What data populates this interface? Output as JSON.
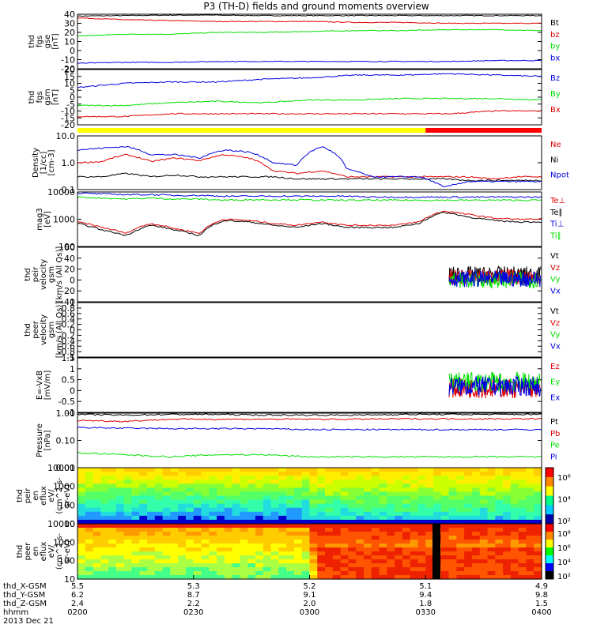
{
  "title": "P3 (TH-D) fields and ground moments overview",
  "colors": {
    "black": "#000000",
    "red": "#e00000",
    "green": "#00e000",
    "blue": "#0000e0",
    "yellow": "#ffff00",
    "barRed": "#ff0000"
  },
  "chart_data": [
    {
      "id": "fgs_gse",
      "type": "line",
      "ylabel": [
        "thd",
        "fgs",
        "gse",
        "[nT]"
      ],
      "ylim": [
        -20,
        40
      ],
      "yticks": [
        40,
        30,
        20,
        10,
        0,
        -10,
        -20
      ],
      "log": false,
      "series": [
        {
          "name": "Bt",
          "color": "black",
          "y": [
            38,
            38.5,
            39,
            39,
            38.5,
            38.5,
            38.5,
            38.5,
            38.5,
            38.5,
            38.5
          ]
        },
        {
          "name": "bz",
          "color": "red",
          "y": [
            36,
            34,
            33,
            32,
            32,
            32,
            31,
            31,
            30,
            30,
            30
          ]
        },
        {
          "name": "by",
          "color": "green",
          "y": [
            16,
            18,
            18,
            20,
            20,
            21,
            22,
            22,
            23,
            23,
            22
          ]
        },
        {
          "name": "bx",
          "color": "blue",
          "y": [
            -14,
            -13,
            -13,
            -12,
            -12,
            -12,
            -12,
            -12,
            -12,
            -11,
            -11
          ]
        }
      ]
    },
    {
      "id": "fgs_gsm",
      "type": "line",
      "ylabel": [
        "thd",
        "fgs",
        "gsm",
        "[nT]"
      ],
      "ylim": [
        -20,
        20
      ],
      "yticks": [
        20,
        15,
        10,
        5,
        0,
        -5,
        -10,
        -15,
        -20
      ],
      "log": false,
      "series": [
        {
          "name": "Bz",
          "color": "blue",
          "y": [
            7,
            10,
            11,
            11,
            13,
            14,
            16,
            16,
            17,
            16,
            15
          ]
        },
        {
          "name": "By",
          "color": "green",
          "y": [
            -6,
            -6,
            -4,
            -3,
            -4,
            -2,
            -2,
            -1,
            -1,
            -1,
            -2
          ]
        },
        {
          "name": "Bx",
          "color": "red",
          "y": [
            -14,
            -14,
            -12,
            -12,
            -12,
            -12,
            -12,
            -12,
            -12,
            -10,
            -10
          ]
        }
      ]
    },
    {
      "id": "density",
      "type": "line",
      "ylabel": [
        "Density",
        "[1/cc]",
        "[cm-3]"
      ],
      "ylim": [
        0.1,
        10
      ],
      "yticks": [
        10,
        1,
        0.1
      ],
      "ytick_labels": [
        "10.0",
        "1.0",
        "0.1"
      ],
      "log": true,
      "series": [
        {
          "name": "Ne",
          "color": "red",
          "y": [
            1.0,
            1.1,
            2,
            1.1,
            1.5,
            1.2,
            2,
            1.5,
            0.5,
            0.4,
            0.5,
            0.3,
            0.3,
            0.3,
            0.3,
            0.3,
            0.3,
            0.25,
            0.3,
            0.3
          ]
        },
        {
          "name": "Ni",
          "color": "black",
          "y": [
            0.3,
            0.3,
            0.4,
            0.3,
            0.35,
            0.3,
            0.3,
            0.3,
            0.3,
            0.25,
            0.25,
            0.25,
            0.25,
            0.25,
            0.25,
            0.25,
            0.22,
            0.22,
            0.22,
            0.22
          ]
        },
        {
          "name": "Npot",
          "color": "blue",
          "y": [
            3,
            3.5,
            4,
            2,
            2,
            1.5,
            3,
            2.5,
            1,
            0.8,
            4,
            0.6,
            0.3,
            0.3,
            0.3,
            0.12,
            0.2,
            0.2,
            0.2,
            0.2
          ]
        }
      ]
    },
    {
      "id": "temp",
      "type": "line",
      "ylabel": [
        "mag3",
        "[eV]"
      ],
      "ylim": [
        100,
        10000
      ],
      "yticks": [
        10000,
        1000,
        100
      ],
      "ytick_labels": [
        "10000",
        "1000",
        "100"
      ],
      "log": true,
      "series": [
        {
          "name": "Te⊥",
          "color": "red",
          "y": [
            800,
            500,
            300,
            700,
            450,
            300,
            1000,
            900,
            700,
            600,
            800,
            600,
            600,
            600,
            800,
            2000,
            1500,
            1100,
            1000,
            1000
          ]
        },
        {
          "name": "Te∥",
          "color": "black",
          "y": [
            700,
            400,
            250,
            600,
            400,
            250,
            900,
            800,
            600,
            500,
            700,
            500,
            500,
            500,
            700,
            1800,
            1200,
            900,
            800,
            800
          ]
        },
        {
          "name": "Ti⊥",
          "color": "blue",
          "y": [
            9000,
            8500,
            8000,
            8000,
            7500,
            7500,
            7000,
            7000,
            7000,
            7000,
            7000,
            7000,
            6500,
            6500,
            6500,
            6500,
            6500,
            6500,
            6500,
            6500
          ]
        },
        {
          "name": "Ti∥",
          "color": "green",
          "y": [
            6500,
            6000,
            5500,
            6000,
            5500,
            5500,
            5000,
            5200,
            5200,
            5200,
            5000,
            5000,
            5000,
            5000,
            5000,
            5000,
            5000,
            5000,
            5000,
            5000
          ]
        }
      ]
    },
    {
      "id": "peir_vel",
      "type": "line",
      "ylabel": [
        "thd",
        "peir",
        "velocity",
        "gsm",
        "[km/s (All Qs)]"
      ],
      "ylim": [
        -40,
        60
      ],
      "yticks": [
        60,
        40,
        20,
        0,
        -20,
        -40
      ],
      "log": false,
      "series": [
        {
          "name": "Vt",
          "color": "black",
          "y": [
            10
          ]
        },
        {
          "name": "Vz",
          "color": "red",
          "y": [
            5
          ]
        },
        {
          "name": "Vy",
          "color": "green",
          "y": [
            0
          ]
        },
        {
          "name": "Vx",
          "color": "blue",
          "y": [
            2
          ]
        }
      ]
    },
    {
      "id": "peer_vel",
      "type": "line",
      "ylabel": [
        "thd",
        "peer",
        "velocity",
        "gsm",
        "[km/s (All Qs)]"
      ],
      "ylim": [
        -1,
        1
      ],
      "yticks": [
        1.0,
        0.8,
        0.6,
        0.4,
        0.2,
        0.0,
        -0.2,
        -0.4,
        -0.6,
        -0.8,
        -1.0
      ],
      "log": false,
      "series": [
        {
          "name": "Vt",
          "color": "black",
          "y": []
        },
        {
          "name": "Vz",
          "color": "red",
          "y": []
        },
        {
          "name": "Vy",
          "color": "green",
          "y": []
        },
        {
          "name": "Vx",
          "color": "blue",
          "y": []
        }
      ]
    },
    {
      "id": "efield",
      "type": "line",
      "ylabel": [
        "E=-VxB",
        "[mV/m]"
      ],
      "ylim": [
        -1,
        1.5
      ],
      "yticks": [
        1.5,
        1.0,
        0.5,
        0.0,
        -0.5,
        -1.0
      ],
      "log": false,
      "series": [
        {
          "name": "Ez",
          "color": "red",
          "y": [
            0.1
          ]
        },
        {
          "name": "Ey",
          "color": "green",
          "y": [
            0.4
          ]
        },
        {
          "name": "Ex",
          "color": "blue",
          "y": [
            0.2
          ]
        }
      ]
    },
    {
      "id": "pressure",
      "type": "line",
      "ylabel": [
        "Pressure",
        "[nPa]"
      ],
      "ylim": [
        0.01,
        1
      ],
      "yticks": [
        1,
        0.1,
        0.01
      ],
      "ytick_labels": [
        "1.00",
        "0.10",
        "0.01"
      ],
      "log": true,
      "series": [
        {
          "name": "Pt",
          "color": "black",
          "y": [
            0.9,
            0.85,
            0.9,
            0.9,
            0.85,
            0.85,
            0.85,
            0.9,
            0.9,
            0.9,
            0.9
          ]
        },
        {
          "name": "Pb",
          "color": "red",
          "y": [
            0.55,
            0.5,
            0.6,
            0.6,
            0.6,
            0.6,
            0.6,
            0.62,
            0.62,
            0.62,
            0.62
          ]
        },
        {
          "name": "Pe",
          "color": "green",
          "y": [
            0.035,
            0.03,
            0.025,
            0.03,
            0.03,
            0.025,
            0.025,
            0.025,
            0.025,
            0.025,
            0.025
          ]
        },
        {
          "name": "Pi",
          "color": "blue",
          "y": [
            0.3,
            0.28,
            0.27,
            0.27,
            0.27,
            0.25,
            0.25,
            0.25,
            0.25,
            0.25,
            0.25
          ]
        }
      ]
    },
    {
      "id": "peir_spec",
      "type": "heatmap",
      "ylabel": [
        "thd",
        "peir",
        "en",
        "eflux",
        "eV/",
        "(cm^2-s-",
        "sr-eV)"
      ],
      "ylim": [
        10,
        10000
      ],
      "yticks": [
        10000,
        1000,
        100,
        10
      ],
      "ytick_labels": [
        "10000",
        "1000",
        "100",
        "10"
      ],
      "log": true,
      "colorbar_labels": [
        "10⁶",
        "10⁴",
        "10²"
      ]
    },
    {
      "id": "peer_spec",
      "type": "heatmap",
      "ylabel": [
        "thd",
        "peer",
        "en",
        "eflux",
        "eV/",
        "(cm^2-s-",
        "sr-eV)"
      ],
      "ylim": [
        10,
        10000
      ],
      "yticks": [
        10000,
        1000,
        100,
        10
      ],
      "ytick_labels": [
        "10000",
        "1000",
        "100",
        "10"
      ],
      "log": true,
      "colorbar_labels": [
        "10⁸",
        "10⁶",
        "10⁴",
        "10²"
      ]
    }
  ],
  "state_bar": {
    "yellow_until": 0.75,
    "colors": [
      "yellow",
      "barRed"
    ]
  },
  "xaxis": {
    "row_labels": [
      "thd_X-GSM",
      "thd_Y-GSM",
      "thd_Z-GSM",
      "hhmm",
      "2013 Dec 21"
    ],
    "columns": [
      {
        "x": "5.5",
        "y": "6.2",
        "z": "2.4",
        "t": "0200"
      },
      {
        "x": "5.3",
        "y": "8.7",
        "z": "2.2",
        "t": "0230"
      },
      {
        "x": "5.2",
        "y": "9.1",
        "z": "2.0",
        "t": "0300"
      },
      {
        "x": "5.1",
        "y": "9.4",
        "z": "1.8",
        "t": "0330"
      },
      {
        "x": "4.9",
        "y": "9.8",
        "z": "1.5",
        "t": "0400"
      }
    ]
  }
}
